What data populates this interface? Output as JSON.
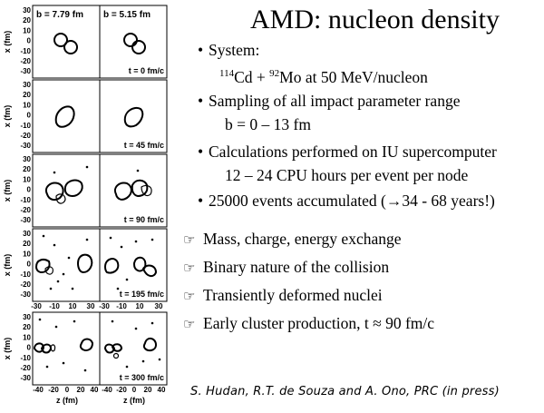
{
  "title": "AMD: nucleon density",
  "bullets": [
    {
      "label": "System:"
    },
    {
      "label": "Sampling of all impact parameter range"
    },
    {
      "label": "b = 0 – 13 fm"
    },
    {
      "label": "Calculations performed on IU supercomputer"
    },
    {
      "label": "12 – 24 CPU hours per event per node"
    },
    {
      "label": "25000 events accumulated (→34 - 68 years!)"
    }
  ],
  "system_line": {
    "a1": "114",
    "s1": "Cd + ",
    "a2": "92",
    "s2": "Mo at 50 MeV/nucleon"
  },
  "pointers": [
    "Mass, charge, energy exchange",
    "Binary nature of the collision",
    "Transiently deformed nuclei",
    "Early cluster production, t ≈ 90 fm/c"
  ],
  "pointer_icon": "hand-pointer-icon",
  "citation": "S. Hudan, R.T. de Souza and A. Ono, PRC (in press)",
  "figure": {
    "b_labels": [
      "b = 7.79 fm",
      "b = 5.15 fm"
    ],
    "time_labels": [
      "t = 0 fm/c",
      "t = 45 fm/c",
      "t = 90 fm/c",
      "t = 195 fm/c",
      "t = 300 fm/c"
    ],
    "y_axis_label": "x (fm)",
    "y_ticks": [
      "30",
      "20",
      "10",
      "0",
      "-10",
      "-20",
      "-30"
    ],
    "x_ticks_short": [
      "-30",
      "-10",
      "10",
      "30"
    ],
    "x_ticks_mid": [
      "10",
      "30"
    ],
    "x_ticks_long": [
      "-40",
      "-20",
      "0",
      "20",
      "40"
    ],
    "x_axis_label": "z (fm)"
  }
}
